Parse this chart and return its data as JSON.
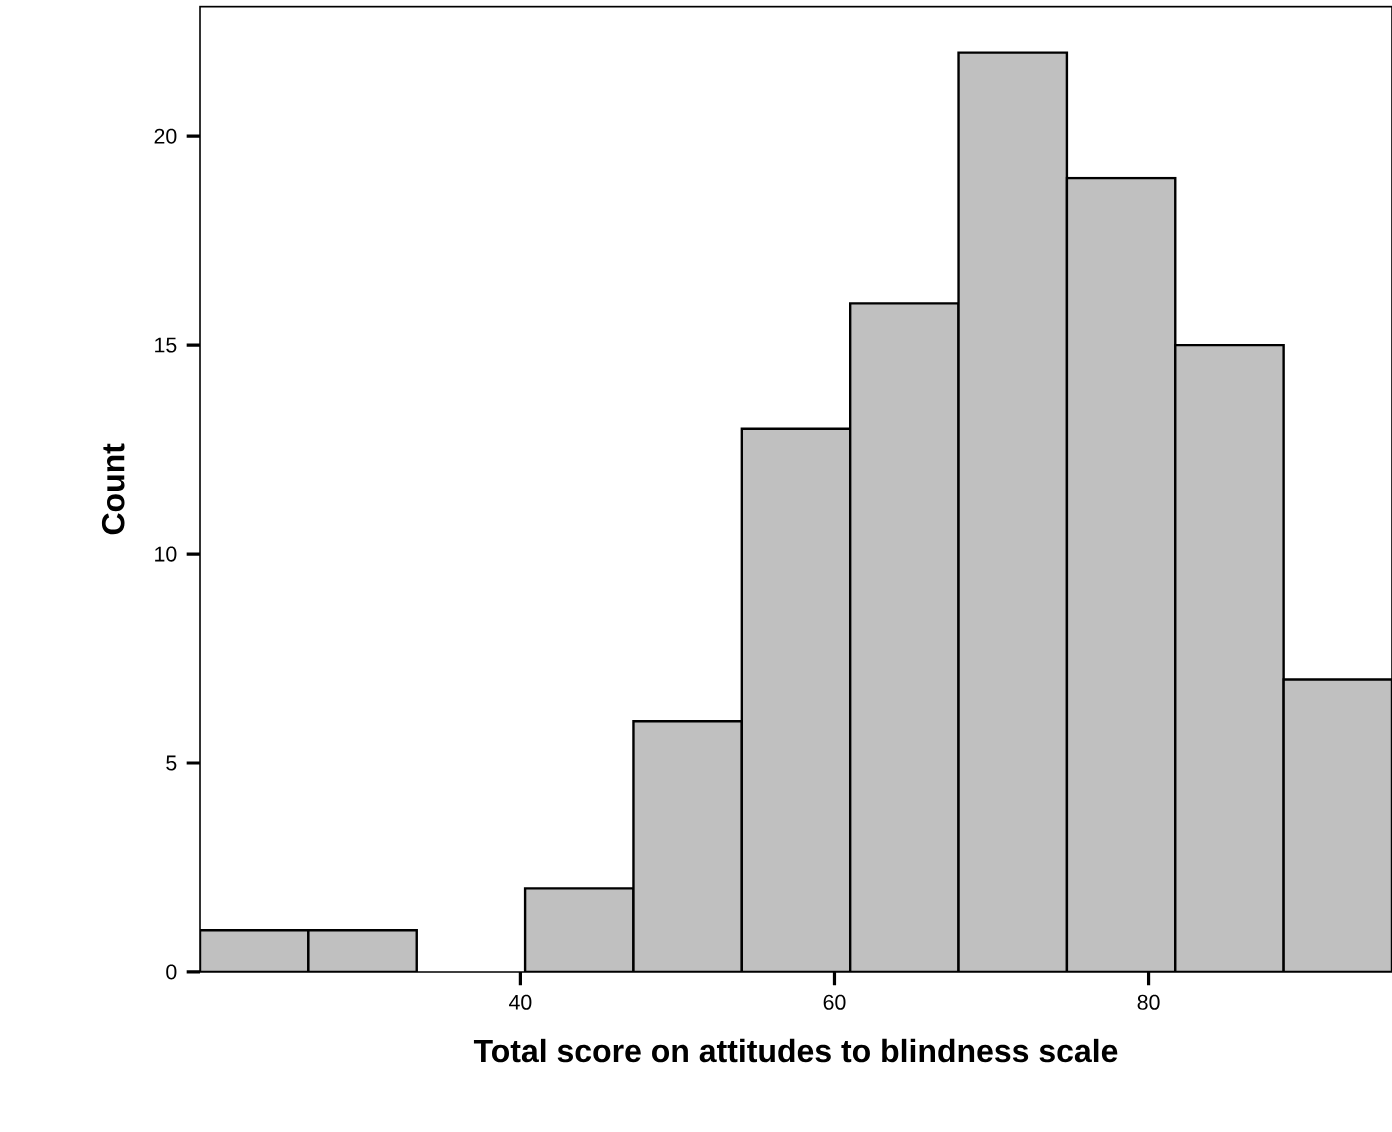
{
  "chart_data": {
    "type": "histogram",
    "xlabel": "Total score on attitudes to blindness scale",
    "ylabel": "Count",
    "bins": [
      19.6,
      26.5,
      33.4,
      40.3,
      47.2,
      54.1,
      61.0,
      67.9,
      74.8,
      81.7,
      88.6,
      95.5
    ],
    "values": [
      1,
      1,
      0,
      2,
      6,
      13,
      16,
      22,
      19,
      15,
      7
    ],
    "color": "#c0c0c0",
    "xlim": [
      19.6,
      95.5
    ],
    "ylim": [
      0,
      23.1
    ],
    "xticks": [
      40,
      60,
      80
    ],
    "yticks": [
      0,
      5,
      10,
      15,
      20
    ],
    "grid": false
  }
}
